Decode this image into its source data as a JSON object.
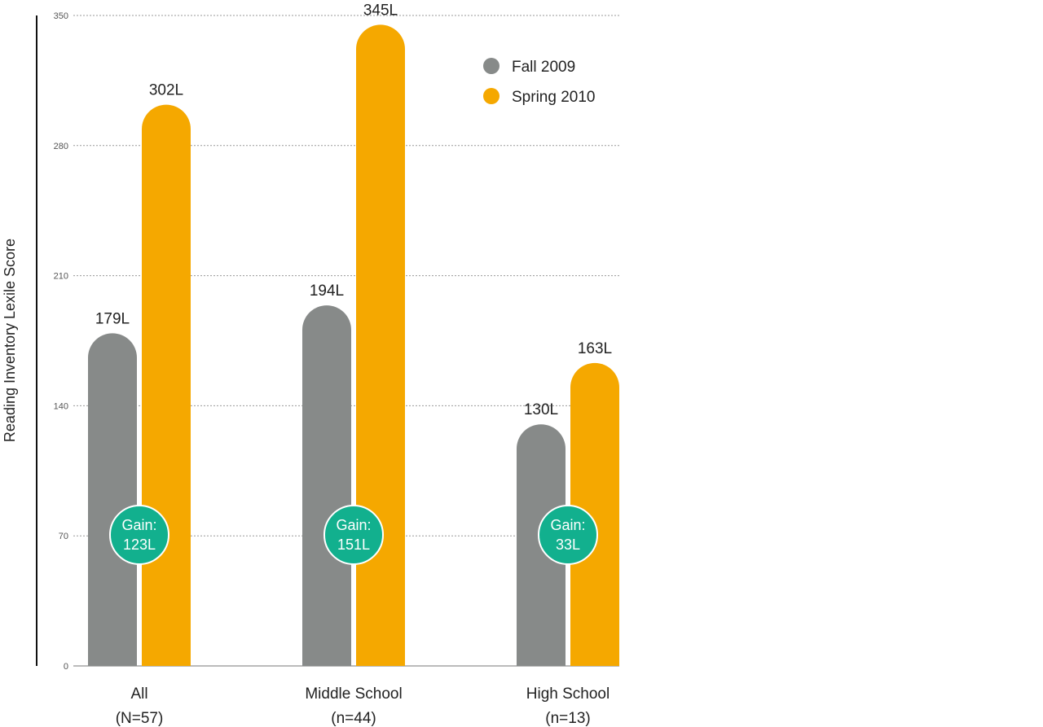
{
  "chart_data": {
    "type": "bar",
    "ylabel": "Reading Inventory Lexile Score",
    "ylim": [
      0,
      350
    ],
    "yticks": [
      "0",
      "70",
      "140",
      "210",
      "280",
      "350"
    ],
    "grid": true,
    "legend_position": "top-right",
    "categories": [
      {
        "line1": "All",
        "line2": "(N=57)"
      },
      {
        "line1": "Middle School",
        "line2": "(n=44)"
      },
      {
        "line1": "High School",
        "line2": "(n=13)"
      }
    ],
    "series": [
      {
        "name": "Fall 2009",
        "color": "#878A89",
        "values": [
          179,
          194,
          130
        ],
        "labels": [
          "179L",
          "194L",
          "130L"
        ]
      },
      {
        "name": "Spring 2010",
        "color": "#F5A800",
        "values": [
          302,
          345,
          163
        ],
        "labels": [
          "302L",
          "345L",
          "163L"
        ]
      }
    ],
    "gains": [
      {
        "line1": "Gain:",
        "line2": "123L"
      },
      {
        "line1": "Gain:",
        "line2": "151L"
      },
      {
        "line1": "Gain:",
        "line2": "33L"
      }
    ],
    "gain_color": "#12B08E"
  }
}
